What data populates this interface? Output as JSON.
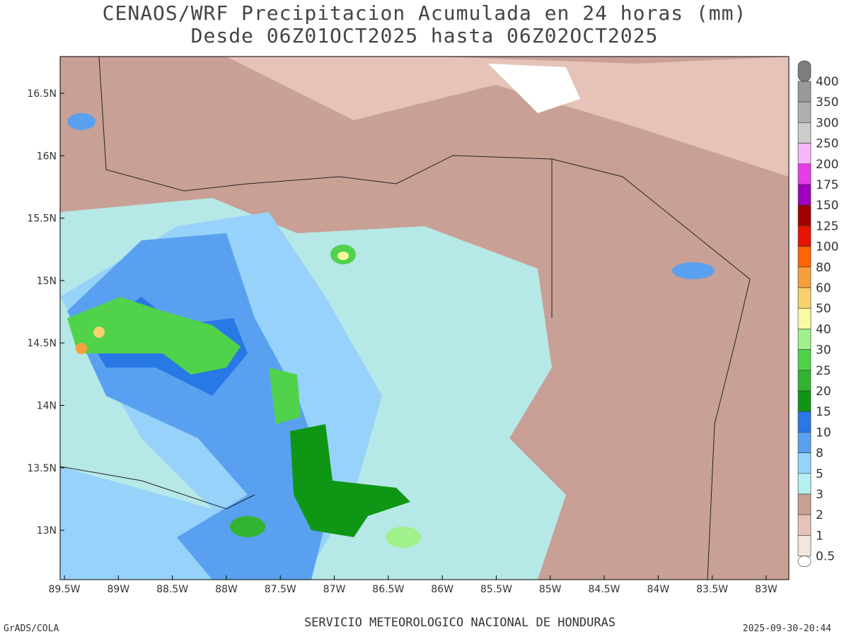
{
  "title": [
    "CENAOS/WRF Precipitacion Acumulada en 24 horas (mm)",
    "Desde 06Z01OCT2025 hasta 06Z02OCT2025"
  ],
  "x_labels": [
    "89.5W",
    "89W",
    "88.5W",
    "88W",
    "87.5W",
    "87W",
    "86.5W",
    "86W",
    "85.5W",
    "85W",
    "84.5W",
    "84W",
    "83.5W",
    "83W"
  ],
  "y_labels": [
    "16.5N",
    "16N",
    "15.5N",
    "15N",
    "14.5N",
    "14N",
    "13.5N",
    "13N"
  ],
  "colorbar": {
    "labels": [
      "400",
      "350",
      "300",
      "250",
      "200",
      "175",
      "150",
      "125",
      "100",
      "80",
      "60",
      "50",
      "40",
      "30",
      "25",
      "20",
      "15",
      "10",
      "8",
      "5",
      "3",
      "2",
      "1",
      "0.5"
    ],
    "colors": [
      "#7d7d7d",
      "#999999",
      "#b0b0b0",
      "#cccccc",
      "#f8b4f8",
      "#e83ce8",
      "#a000c0",
      "#a00000",
      "#e61400",
      "#ff6400",
      "#f5a03c",
      "#f5d26e",
      "#fafaa0",
      "#a0f08c",
      "#50d24b",
      "#32b432",
      "#0f9614",
      "#2878e6",
      "#5aa0f0",
      "#96d2fa",
      "#b4f0f0",
      "#c8a096",
      "#e6c3b9",
      "#f5e6dc",
      "#ffffff"
    ]
  },
  "footer": {
    "left": "GrADS/COLA",
    "center": "SERVICIO METEOROLOGICO NACIONAL DE HONDURAS",
    "right": "2025-09-30-20:44"
  }
}
